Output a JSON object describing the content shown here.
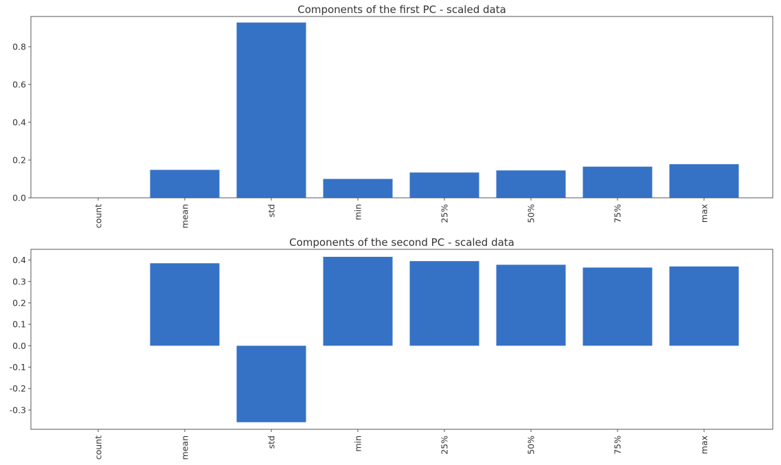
{
  "bar_color": "#3572c6",
  "chart_data": [
    {
      "type": "bar",
      "title": "Components of the first PC - scaled data",
      "categories": [
        "count",
        "mean",
        "std",
        "min",
        "25%",
        "50%",
        "75%",
        "max"
      ],
      "values": [
        0.0,
        0.148,
        0.928,
        0.1,
        0.134,
        0.145,
        0.165,
        0.178
      ],
      "ylim": [
        0.0,
        0.96
      ],
      "yticks": [
        0.0,
        0.2,
        0.4,
        0.6,
        0.8
      ],
      "ytick_labels": [
        "0.0",
        "0.2",
        "0.4",
        "0.6",
        "0.8"
      ],
      "xlabel": "",
      "ylabel": "",
      "grid": false,
      "legend": "none"
    },
    {
      "type": "bar",
      "title": "Components of the second PC - scaled data",
      "categories": [
        "count",
        "mean",
        "std",
        "min",
        "25%",
        "50%",
        "75%",
        "max"
      ],
      "values": [
        0.0,
        0.385,
        -0.357,
        0.415,
        0.395,
        0.378,
        0.365,
        0.37
      ],
      "ylim": [
        -0.39,
        0.45
      ],
      "yticks": [
        -0.3,
        -0.2,
        -0.1,
        0.0,
        0.1,
        0.2,
        0.3,
        0.4
      ],
      "ytick_labels": [
        "-0.3",
        "-0.2",
        "-0.1",
        "0.0",
        "0.1",
        "0.2",
        "0.3",
        "0.4"
      ],
      "xlabel": "",
      "ylabel": "",
      "grid": false,
      "legend": "none"
    }
  ]
}
